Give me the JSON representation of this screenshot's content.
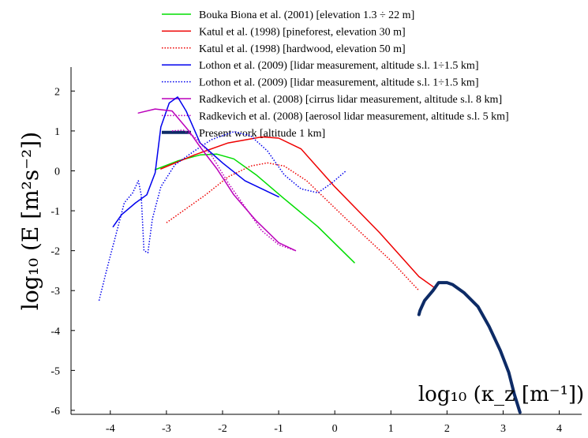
{
  "chart_data": {
    "type": "line",
    "title": "",
    "xlabel": "log₁₀ (κ_z [m⁻¹])",
    "ylabel": "log₁₀ (E [m²s⁻²])",
    "xlim": [
      -4.7,
      4.4
    ],
    "ylim": [
      -6.1,
      2.6
    ],
    "x_ticks": [
      -4,
      -3,
      -2,
      -1,
      0,
      1,
      2,
      3,
      4
    ],
    "y_ticks": [
      2,
      1,
      0,
      -1,
      -2,
      -3,
      -4,
      -5,
      -6
    ],
    "grid": false,
    "legend_position": "top",
    "series": [
      {
        "name": "Bouka Biona et al. (2001) [elevation 1.3 ÷ 22 m]",
        "color": "#00dd00",
        "style": "solid",
        "width": 1.5,
        "points": [
          [
            -3.2,
            0.03
          ],
          [
            -2.8,
            0.25
          ],
          [
            -2.4,
            0.4
          ],
          [
            -2.1,
            0.42
          ],
          [
            -1.8,
            0.3
          ],
          [
            -1.4,
            -0.1
          ],
          [
            -0.9,
            -0.7
          ],
          [
            -0.3,
            -1.4
          ],
          [
            0.35,
            -2.3
          ]
        ]
      },
      {
        "name": "Katul et al. (1998) [pineforest, elevation 30 m]",
        "color": "#ee0000",
        "style": "solid",
        "width": 1.5,
        "points": [
          [
            -3.1,
            0.05
          ],
          [
            -2.5,
            0.4
          ],
          [
            -1.9,
            0.7
          ],
          [
            -1.3,
            0.85
          ],
          [
            -1.0,
            0.82
          ],
          [
            -0.6,
            0.55
          ],
          [
            0,
            -0.4
          ],
          [
            0.8,
            -1.55
          ],
          [
            1.5,
            -2.65
          ],
          [
            1.8,
            -2.95
          ]
        ]
      },
      {
        "name": "Katul et al. (1998) [hardwood, elevation 50 m]",
        "color": "#ee0000",
        "style": "dotted",
        "width": 1.5,
        "points": [
          [
            -3.0,
            -1.3
          ],
          [
            -2.3,
            -0.6
          ],
          [
            -1.9,
            -0.15
          ],
          [
            -1.5,
            0.12
          ],
          [
            -1.2,
            0.2
          ],
          [
            -0.9,
            0.12
          ],
          [
            -0.5,
            -0.25
          ],
          [
            0.2,
            -1.2
          ],
          [
            1.0,
            -2.25
          ],
          [
            1.5,
            -3.0
          ]
        ]
      },
      {
        "name": "Lothon et al. (2009) [lidar measurement, altitude s.l. 1÷1.5 km]",
        "color": "#0000ee",
        "style": "solid",
        "width": 1.5,
        "points": [
          [
            -3.95,
            -1.4
          ],
          [
            -3.8,
            -1.1
          ],
          [
            -3.55,
            -0.8
          ],
          [
            -3.35,
            -0.6
          ],
          [
            -3.2,
            -0.05
          ],
          [
            -3.1,
            1.1
          ],
          [
            -2.95,
            1.7
          ],
          [
            -2.8,
            1.85
          ],
          [
            -2.65,
            1.5
          ],
          [
            -2.4,
            0.7
          ],
          [
            -2.0,
            0.2
          ],
          [
            -1.6,
            -0.25
          ],
          [
            -1.0,
            -0.65
          ]
        ]
      },
      {
        "name": "Lothon et al. (2009) [lidar measurement, altitude s.l. 1÷1.5 km]",
        "color": "#0000ee",
        "style": "dotted",
        "width": 1.5,
        "points": [
          [
            -4.2,
            -3.25
          ],
          [
            -4.05,
            -2.4
          ],
          [
            -3.9,
            -1.6
          ],
          [
            -3.75,
            -0.8
          ],
          [
            -3.6,
            -0.55
          ],
          [
            -3.5,
            -0.25
          ],
          [
            -3.45,
            -0.6
          ],
          [
            -3.4,
            -2.0
          ],
          [
            -3.33,
            -2.05
          ],
          [
            -3.25,
            -1.2
          ],
          [
            -3.1,
            -0.4
          ],
          [
            -2.85,
            0.15
          ],
          [
            -2.5,
            0.5
          ],
          [
            -2.2,
            0.78
          ],
          [
            -1.8,
            0.98
          ],
          [
            -1.5,
            0.88
          ],
          [
            -1.2,
            0.5
          ],
          [
            -0.9,
            -0.1
          ],
          [
            -0.6,
            -0.45
          ],
          [
            -0.3,
            -0.55
          ],
          [
            -0.05,
            -0.3
          ],
          [
            0.2,
            0.0
          ]
        ]
      },
      {
        "name": "Radkevich et al. (2008) [cirrus lidar measurement, altitude s.l. 8 km]",
        "color": "#bb00bb",
        "style": "solid",
        "width": 1.5,
        "points": [
          [
            -3.5,
            1.45
          ],
          [
            -3.2,
            1.55
          ],
          [
            -2.9,
            1.5
          ],
          [
            -2.6,
            1.0
          ],
          [
            -2.4,
            0.6
          ],
          [
            -2.1,
            0.05
          ],
          [
            -1.8,
            -0.6
          ],
          [
            -1.4,
            -1.25
          ],
          [
            -1.0,
            -1.8
          ],
          [
            -0.7,
            -2.0
          ]
        ]
      },
      {
        "name": "Radkevich et al. (2008) [aerosol lidar measurement, altitude s.l. 5 km]",
        "color": "#bb00bb",
        "style": "dotted",
        "width": 1.5,
        "points": [
          [
            -2.9,
            1.0
          ],
          [
            -2.7,
            1.02
          ],
          [
            -2.5,
            0.85
          ],
          [
            -2.2,
            0.4
          ],
          [
            -1.9,
            -0.3
          ],
          [
            -1.6,
            -0.9
          ],
          [
            -1.3,
            -1.5
          ],
          [
            -1.0,
            -1.85
          ],
          [
            -0.7,
            -2.0
          ]
        ]
      },
      {
        "name": "Present work [altitude 1 km]",
        "color": "#0d2b66",
        "style": "solid",
        "width": 4,
        "points": [
          [
            1.5,
            -3.6
          ],
          [
            1.52,
            -3.5
          ],
          [
            1.6,
            -3.25
          ],
          [
            1.75,
            -3.0
          ],
          [
            1.85,
            -2.8
          ],
          [
            2.0,
            -2.8
          ],
          [
            2.1,
            -2.85
          ],
          [
            2.3,
            -3.05
          ],
          [
            2.55,
            -3.4
          ],
          [
            2.75,
            -3.9
          ],
          [
            2.95,
            -4.5
          ],
          [
            3.1,
            -5.05
          ],
          [
            3.2,
            -5.6
          ],
          [
            3.3,
            -6.05
          ]
        ]
      }
    ]
  }
}
